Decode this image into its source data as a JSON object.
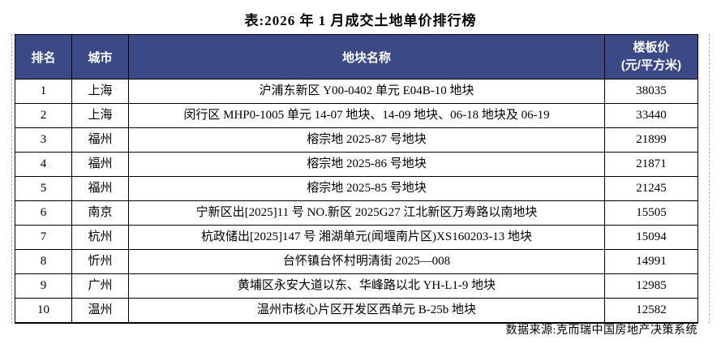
{
  "title": "表:2026 年 1 月成交土地单价排行榜",
  "table": {
    "headers": {
      "rank": "排名",
      "city": "城市",
      "name": "地块名称",
      "price_line1": "楼板价",
      "price_line2": "(元/平方米)"
    },
    "rows": [
      {
        "rank": "1",
        "city": "上海",
        "name": "沪浦东新区 Y00-0402 单元 E04B-10 地块",
        "price": "38035"
      },
      {
        "rank": "2",
        "city": "上海",
        "name": "闵行区 MHP0-1005 单元 14-07 地块、14-09 地块、06-18 地块及 06-19",
        "price": "33440"
      },
      {
        "rank": "3",
        "city": "福州",
        "name": "榕宗地 2025-87 号地块",
        "price": "21899"
      },
      {
        "rank": "4",
        "city": "福州",
        "name": "榕宗地 2025-86 号地块",
        "price": "21871"
      },
      {
        "rank": "5",
        "city": "福州",
        "name": "榕宗地 2025-85 号地块",
        "price": "21245"
      },
      {
        "rank": "6",
        "city": "南京",
        "name": "宁新区出[2025]11 号 NO.新区 2025G27 江北新区万寿路以南地块",
        "price": "15505"
      },
      {
        "rank": "7",
        "city": "杭州",
        "name": "杭政储出[2025]147 号  湘湖单元(闻堰南片区)XS160203-13 地块",
        "price": "15094"
      },
      {
        "rank": "8",
        "city": "忻州",
        "name": "台怀镇台怀村明清街 2025—008",
        "price": "14991"
      },
      {
        "rank": "9",
        "city": "广州",
        "name": "黄埔区永安大道以东、华峰路以北 YH-L1-9 地块",
        "price": "12985"
      },
      {
        "rank": "10",
        "city": "温州",
        "name": "温州市核心片区开发区西单元 B-25b 地块",
        "price": "12582"
      }
    ]
  },
  "footer": {
    "source": "数据来源:克而瑞中国房地产决策系统"
  },
  "colors": {
    "header_bg": "#3A4A86",
    "header_text": "#FFFFFF",
    "border": "#000000",
    "gridline_dashed": "#B3B3B3",
    "background": "#FFFFFF"
  }
}
